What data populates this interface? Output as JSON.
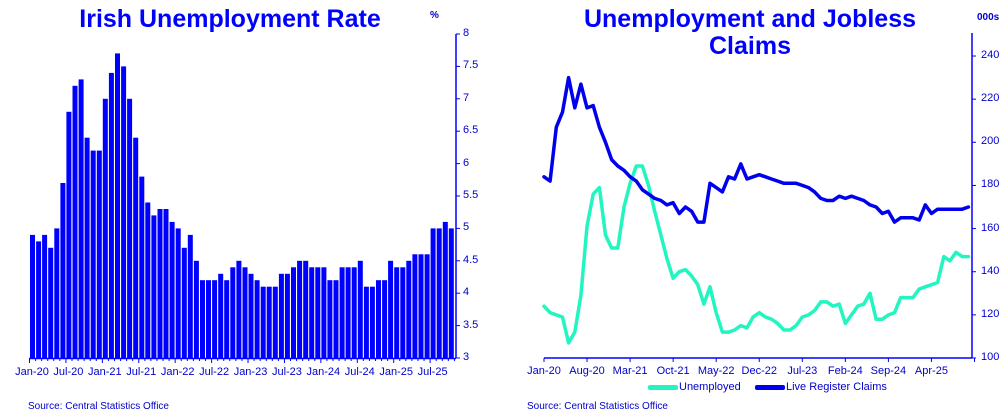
{
  "left_chart": {
    "title": "Irish Unemployment Rate",
    "unit": "%",
    "source": "Source: Central Statistics Office",
    "bar_color": "#0000ff",
    "axis_color": "#0000ff"
  },
  "right_chart": {
    "title_line1": "Unemployment and Jobless",
    "title_line2": "Claims",
    "unit": "000s",
    "source": "Source: Central Statistics Office",
    "legend": {
      "unemployed": "Unemployed",
      "claims": "Live Register Claims"
    },
    "colors": {
      "unemployed": "#22f5c0",
      "claims": "#0000ee"
    }
  },
  "chart_data": [
    {
      "type": "bar",
      "title": "Irish Unemployment Rate",
      "xlabel": "",
      "ylabel": "%",
      "ylim": [
        3,
        8
      ],
      "yticks": [
        "3",
        "3.5",
        "4",
        "4.5",
        "5",
        "5.5",
        "6",
        "6.5",
        "7",
        "7.5",
        "8"
      ],
      "xtick_labels": [
        "Jan-20",
        "Jul-20",
        "Jan-21",
        "Jul-21",
        "Jan-22",
        "Jul-22",
        "Jan-23",
        "Jul-23",
        "Jan-24",
        "Jul-24",
        "Jan-25",
        "Jul-25"
      ],
      "grid": false,
      "legend": "none",
      "start": "Jan-20",
      "frequency": "monthly",
      "values": [
        4.9,
        4.8,
        4.9,
        4.7,
        5.0,
        5.7,
        6.8,
        7.2,
        7.3,
        6.4,
        6.2,
        6.2,
        7.0,
        7.4,
        7.7,
        7.5,
        7.0,
        6.4,
        5.8,
        5.4,
        5.2,
        5.3,
        5.3,
        5.1,
        5.0,
        4.7,
        4.9,
        4.5,
        4.2,
        4.2,
        4.2,
        4.3,
        4.2,
        4.4,
        4.5,
        4.4,
        4.3,
        4.2,
        4.1,
        4.1,
        4.1,
        4.3,
        4.3,
        4.4,
        4.5,
        4.5,
        4.4,
        4.4,
        4.4,
        4.2,
        4.2,
        4.4,
        4.4,
        4.4,
        4.5,
        4.1,
        4.1,
        4.2,
        4.2,
        4.5,
        4.4,
        4.4,
        4.5,
        4.6,
        4.6,
        4.6,
        5.0,
        5.0,
        5.1,
        5.0
      ]
    },
    {
      "type": "line",
      "title": "Unemployment and Jobless Claims",
      "xlabel": "",
      "ylabel": "000s",
      "ylim": [
        100,
        240
      ],
      "yticks": [
        "100",
        "120",
        "140",
        "160",
        "180",
        "200",
        "220",
        "240"
      ],
      "xtick_labels": [
        "Jan-20",
        "Aug-20",
        "Mar-21",
        "Oct-21",
        "May-22",
        "Dec-22",
        "Jul-23",
        "Feb-24",
        "Sep-24",
        "Apr-25"
      ],
      "grid": false,
      "legend_position": "bottom",
      "start": "Jan-20",
      "frequency": "monthly",
      "series": [
        {
          "name": "Unemployed",
          "color": "#22f5c0",
          "values": [
            124,
            121,
            120,
            119,
            107,
            112,
            129,
            161,
            176,
            179,
            157,
            151,
            151,
            170,
            181,
            189,
            189,
            180,
            168,
            157,
            146,
            137,
            140,
            141,
            138,
            134,
            125,
            133,
            121,
            112,
            112,
            113,
            115,
            114,
            119,
            121,
            119,
            118,
            116,
            113,
            113,
            115,
            119,
            120,
            122,
            126,
            126,
            124,
            125,
            116,
            120,
            124,
            125,
            130,
            118,
            118,
            120,
            121,
            128,
            128,
            128,
            132,
            133,
            134,
            135,
            147,
            145,
            149,
            147,
            147
          ]
        },
        {
          "name": "Live Register Claims",
          "color": "#0000ee",
          "values": [
            184,
            182,
            207,
            214,
            230,
            216,
            227,
            216,
            217,
            207,
            200,
            192,
            189,
            187,
            184,
            182,
            178,
            176,
            174,
            173,
            171,
            172,
            167,
            170,
            168,
            163,
            163,
            181,
            179,
            177,
            184,
            183,
            190,
            183,
            184,
            185,
            184,
            183,
            182,
            181,
            181,
            181,
            180,
            179,
            177,
            174,
            173,
            173,
            175,
            174,
            175,
            174,
            173,
            171,
            170,
            167,
            168,
            163,
            165,
            165,
            165,
            164,
            171,
            167,
            169,
            169,
            169,
            169,
            169,
            170
          ]
        }
      ]
    }
  ]
}
